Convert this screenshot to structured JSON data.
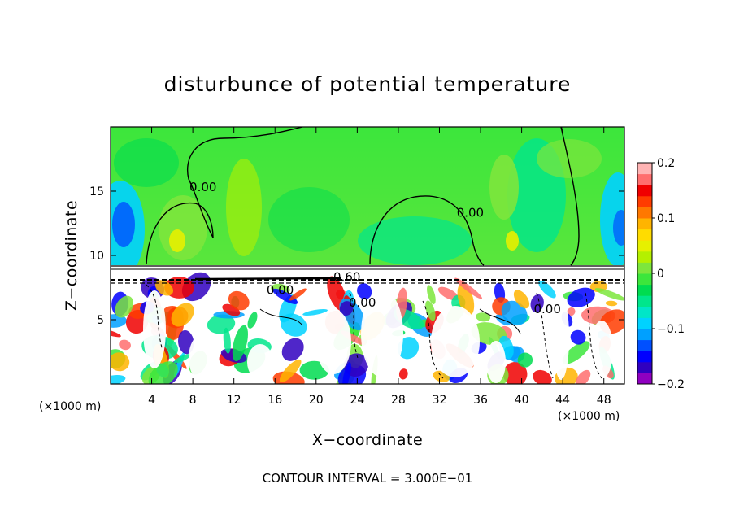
{
  "chart_data": {
    "type": "heatmap",
    "title": "disturbunce of potential temperature",
    "xlabel": "X−coordinate",
    "ylabel": "Z−coordinate",
    "x_unit": "(×1000 m)",
    "x_unit_right": "(×1000 m)",
    "xlim": [
      0,
      50
    ],
    "ylim": [
      0,
      20
    ],
    "x_ticks": [
      4,
      8,
      12,
      16,
      20,
      24,
      28,
      32,
      36,
      40,
      44,
      48
    ],
    "y_ticks": [
      5,
      10,
      15
    ],
    "colorbar": {
      "ticks": [
        0.2,
        0.1,
        0,
        -0.1,
        -0.2
      ],
      "tick_labels": [
        "0.2",
        "0.1",
        "0",
        "−0.1",
        "−0.2"
      ],
      "range": [
        -0.2,
        0.2
      ],
      "colors": [
        "#8f00c0",
        "#3000c0",
        "#0000ff",
        "#0050ff",
        "#00a0ff",
        "#00d2ff",
        "#00e6c8",
        "#00e68c",
        "#00dc50",
        "#3ce63c",
        "#7de63c",
        "#b4f000",
        "#e6f000",
        "#ffdc00",
        "#ffb400",
        "#ff7800",
        "#ff3c00",
        "#f00000",
        "#ff6e6e",
        "#ffb4b4"
      ]
    },
    "contour_labels": [
      {
        "text": "0.00",
        "x": 9,
        "z": 15
      },
      {
        "text": "0.00",
        "x": 35,
        "z": 13
      },
      {
        "text": "0.00",
        "x": 16.5,
        "z": 7
      },
      {
        "text": "0.60",
        "x": 23,
        "z": 8
      },
      {
        "text": "0.00",
        "x": 24.5,
        "z": 6
      },
      {
        "text": "0.00",
        "x": 42.5,
        "z": 5.5
      }
    ],
    "contour_interval_label": "CONTOUR INTERVAL = 3.000E−01",
    "grid": false
  }
}
